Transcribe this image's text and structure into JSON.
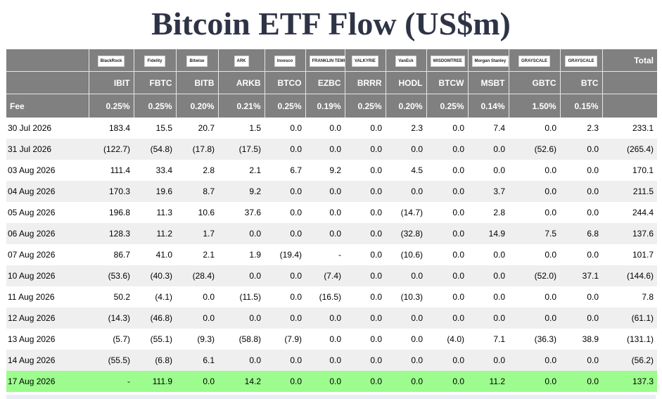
{
  "title": "Bitcoin ETF Flow (US$m)",
  "colors": {
    "header_bg": "#808080",
    "negative": "#e02020",
    "zero": "#c0c0c0",
    "highlight_row": "#9dfc8e",
    "title": "#2e3346"
  },
  "header": {
    "total_label": "Total",
    "fee_label": "Fee",
    "issuers": [
      {
        "logo": "BlackRock",
        "ticker": "IBIT",
        "fee": "0.25%"
      },
      {
        "logo": "Fidelity",
        "ticker": "FBTC",
        "fee": "0.25%"
      },
      {
        "logo": "Bitwise",
        "ticker": "BITB",
        "fee": "0.20%"
      },
      {
        "logo": "ARK",
        "ticker": "ARKB",
        "fee": "0.21%"
      },
      {
        "logo": "Invesco",
        "ticker": "BTCO",
        "fee": "0.25%"
      },
      {
        "logo": "FRANKLIN TEMPLETON",
        "ticker": "EZBC",
        "fee": "0.19%"
      },
      {
        "logo": "VALKYRIE",
        "ticker": "BRRR",
        "fee": "0.25%"
      },
      {
        "logo": "VanEck",
        "ticker": "HODL",
        "fee": "0.20%"
      },
      {
        "logo": "WISDOMTREE",
        "ticker": "BTCW",
        "fee": "0.25%"
      },
      {
        "logo": "Morgan Stanley",
        "ticker": "MSBT",
        "fee": "0.14%"
      },
      {
        "logo": "GRAYSCALE",
        "ticker": "GBTC",
        "fee": "1.50%"
      },
      {
        "logo": "GRAYSCALE",
        "ticker": "BTC",
        "fee": "0.15%"
      }
    ]
  },
  "rows": [
    {
      "date": "30 Jul 2026",
      "values": [
        "183.4",
        "15.5",
        "20.7",
        "1.5",
        "0.0",
        "0.0",
        "0.0",
        "2.3",
        "0.0",
        "7.4",
        "0.0",
        "2.3"
      ],
      "total": "233.1"
    },
    {
      "date": "31 Jul 2026",
      "values": [
        "(122.7)",
        "(54.8)",
        "(17.8)",
        "(17.5)",
        "0.0",
        "0.0",
        "0.0",
        "0.0",
        "0.0",
        "0.0",
        "(52.6)",
        "0.0"
      ],
      "total": "(265.4)"
    },
    {
      "date": "03 Aug 2026",
      "values": [
        "111.4",
        "33.4",
        "2.8",
        "2.1",
        "6.7",
        "9.2",
        "0.0",
        "4.5",
        "0.0",
        "0.0",
        "0.0",
        "0.0"
      ],
      "total": "170.1"
    },
    {
      "date": "04 Aug 2026",
      "values": [
        "170.3",
        "19.6",
        "8.7",
        "9.2",
        "0.0",
        "0.0",
        "0.0",
        "0.0",
        "0.0",
        "3.7",
        "0.0",
        "0.0"
      ],
      "total": "211.5"
    },
    {
      "date": "05 Aug 2026",
      "values": [
        "196.8",
        "11.3",
        "10.6",
        "37.6",
        "0.0",
        "0.0",
        "0.0",
        "(14.7)",
        "0.0",
        "2.8",
        "0.0",
        "0.0"
      ],
      "total": "244.4"
    },
    {
      "date": "06 Aug 2026",
      "values": [
        "128.3",
        "11.2",
        "1.7",
        "0.0",
        "0.0",
        "0.0",
        "0.0",
        "(32.8)",
        "0.0",
        "14.9",
        "7.5",
        "6.8"
      ],
      "total": "137.6"
    },
    {
      "date": "07 Aug 2026",
      "values": [
        "86.7",
        "41.0",
        "2.1",
        "1.9",
        "(19.4)",
        "-",
        "0.0",
        "(10.6)",
        "0.0",
        "0.0",
        "0.0",
        "0.0"
      ],
      "total": "101.7"
    },
    {
      "date": "10 Aug 2026",
      "values": [
        "(53.6)",
        "(40.3)",
        "(28.4)",
        "0.0",
        "0.0",
        "(7.4)",
        "0.0",
        "0.0",
        "0.0",
        "0.0",
        "(52.0)",
        "37.1"
      ],
      "total": "(144.6)"
    },
    {
      "date": "11 Aug 2026",
      "values": [
        "50.2",
        "(4.1)",
        "0.0",
        "(11.5)",
        "0.0",
        "(16.5)",
        "0.0",
        "(10.3)",
        "0.0",
        "0.0",
        "0.0",
        "0.0"
      ],
      "total": "7.8"
    },
    {
      "date": "12 Aug 2026",
      "values": [
        "(14.3)",
        "(46.8)",
        "0.0",
        "0.0",
        "0.0",
        "0.0",
        "0.0",
        "0.0",
        "0.0",
        "0.0",
        "0.0",
        "0.0"
      ],
      "total": "(61.1)"
    },
    {
      "date": "13 Aug 2026",
      "values": [
        "(5.7)",
        "(55.1)",
        "(9.3)",
        "(58.8)",
        "(7.9)",
        "0.0",
        "0.0",
        "0.0",
        "(4.0)",
        "7.1",
        "(36.3)",
        "38.9"
      ],
      "total": "(131.1)"
    },
    {
      "date": "14 Aug 2026",
      "values": [
        "(55.5)",
        "(6.8)",
        "6.1",
        "0.0",
        "0.0",
        "0.0",
        "0.0",
        "0.0",
        "0.0",
        "0.0",
        "0.0",
        "0.0"
      ],
      "total": "(56.2)"
    },
    {
      "date": "17 Aug 2026",
      "values": [
        "-",
        "111.9",
        "0.0",
        "14.2",
        "0.0",
        "0.0",
        "0.0",
        "0.0",
        "0.0",
        "11.2",
        "0.0",
        "0.0"
      ],
      "total": "137.3",
      "highlight": true
    }
  ]
}
